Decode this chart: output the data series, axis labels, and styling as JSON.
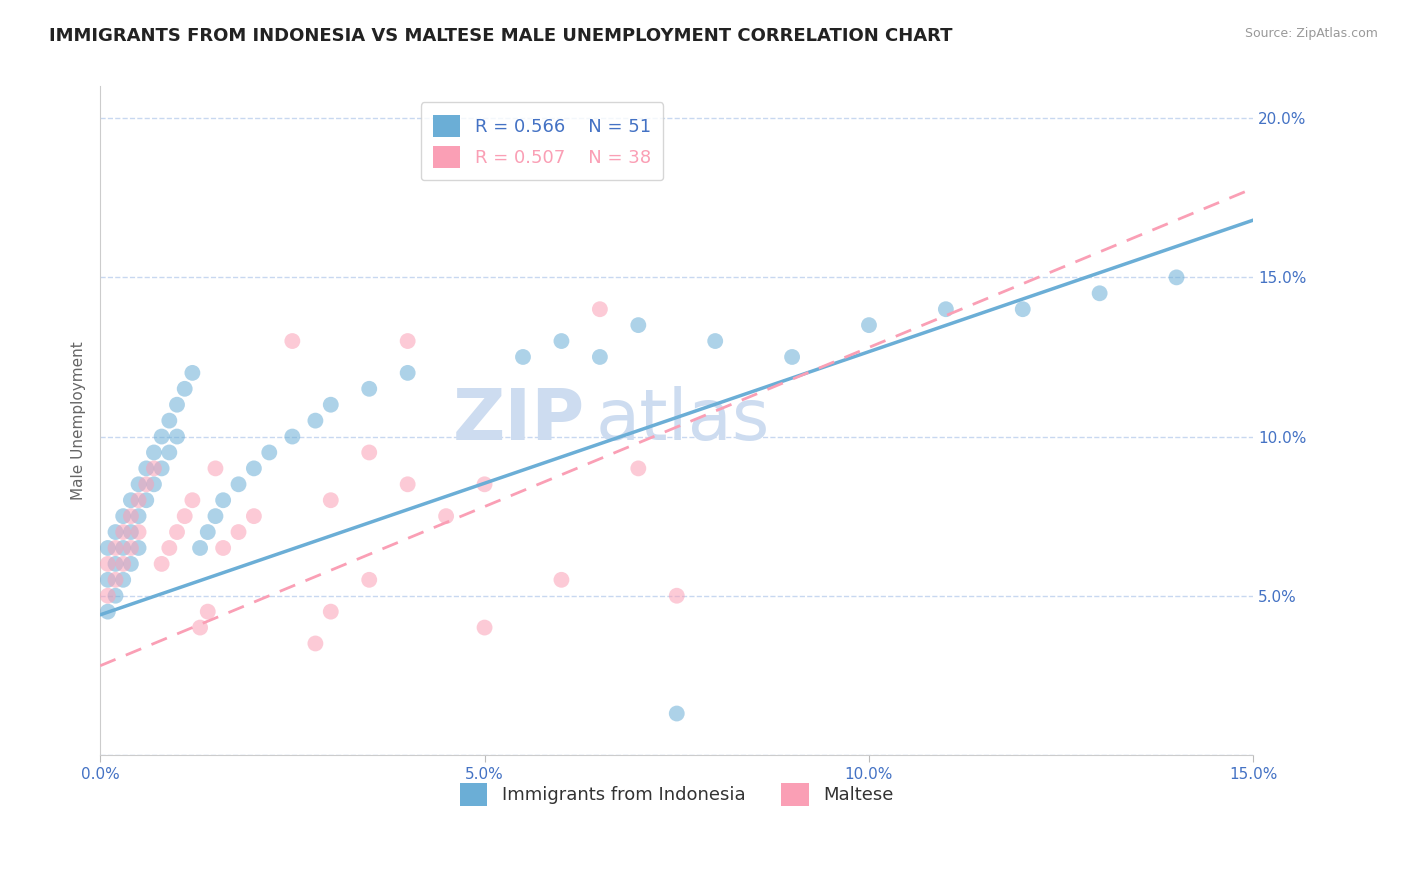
{
  "title": "IMMIGRANTS FROM INDONESIA VS MALTESE MALE UNEMPLOYMENT CORRELATION CHART",
  "source": "Source: ZipAtlas.com",
  "ylabel": "Male Unemployment",
  "series1_name": "Immigrants from Indonesia",
  "series1_color": "#6baed6",
  "series1_R": "0.566",
  "series1_N": "51",
  "series2_name": "Maltese",
  "series2_color": "#fa9fb5",
  "series2_R": "0.507",
  "series2_N": "38",
  "xlim": [
    0.0,
    0.15
  ],
  "ylim": [
    0.0,
    0.21
  ],
  "ytick_values": [
    0.0,
    0.05,
    0.1,
    0.15,
    0.2
  ],
  "ytick_labels": [
    "",
    "5.0%",
    "10.0%",
    "15.0%",
    "20.0%"
  ],
  "xtick_values": [
    0.0,
    0.05,
    0.1,
    0.15
  ],
  "xtick_labels": [
    "0.0%",
    "5.0%",
    "10.0%",
    "15.0%"
  ],
  "axis_color": "#4472c4",
  "grid_color": "#c8d8f0",
  "title_fontsize": 13,
  "label_fontsize": 11,
  "tick_fontsize": 11,
  "legend_fontsize": 13,
  "watermark_color": "#cddcf0",
  "watermark_fontsize": 52,
  "series1_x": [
    0.001,
    0.001,
    0.001,
    0.002,
    0.002,
    0.002,
    0.003,
    0.003,
    0.003,
    0.004,
    0.004,
    0.004,
    0.005,
    0.005,
    0.005,
    0.006,
    0.006,
    0.007,
    0.007,
    0.008,
    0.008,
    0.009,
    0.009,
    0.01,
    0.01,
    0.011,
    0.012,
    0.013,
    0.014,
    0.015,
    0.016,
    0.018,
    0.02,
    0.022,
    0.025,
    0.028,
    0.03,
    0.035,
    0.04,
    0.055,
    0.06,
    0.065,
    0.07,
    0.075,
    0.08,
    0.09,
    0.1,
    0.11,
    0.12,
    0.13,
    0.14
  ],
  "series1_y": [
    0.065,
    0.055,
    0.045,
    0.07,
    0.06,
    0.05,
    0.075,
    0.065,
    0.055,
    0.08,
    0.07,
    0.06,
    0.085,
    0.075,
    0.065,
    0.09,
    0.08,
    0.095,
    0.085,
    0.1,
    0.09,
    0.105,
    0.095,
    0.11,
    0.1,
    0.115,
    0.12,
    0.065,
    0.07,
    0.075,
    0.08,
    0.085,
    0.09,
    0.095,
    0.1,
    0.105,
    0.11,
    0.115,
    0.12,
    0.125,
    0.13,
    0.125,
    0.135,
    0.013,
    0.13,
    0.125,
    0.135,
    0.14,
    0.14,
    0.145,
    0.15
  ],
  "series2_x": [
    0.001,
    0.001,
    0.002,
    0.002,
    0.003,
    0.003,
    0.004,
    0.004,
    0.005,
    0.005,
    0.006,
    0.007,
    0.008,
    0.009,
    0.01,
    0.011,
    0.012,
    0.013,
    0.014,
    0.015,
    0.016,
    0.018,
    0.02,
    0.025,
    0.028,
    0.03,
    0.03,
    0.035,
    0.035,
    0.04,
    0.04,
    0.045,
    0.05,
    0.05,
    0.06,
    0.065,
    0.07,
    0.075
  ],
  "series2_y": [
    0.06,
    0.05,
    0.065,
    0.055,
    0.07,
    0.06,
    0.075,
    0.065,
    0.08,
    0.07,
    0.085,
    0.09,
    0.06,
    0.065,
    0.07,
    0.075,
    0.08,
    0.04,
    0.045,
    0.09,
    0.065,
    0.07,
    0.075,
    0.13,
    0.035,
    0.08,
    0.045,
    0.095,
    0.055,
    0.085,
    0.13,
    0.075,
    0.085,
    0.04,
    0.055,
    0.14,
    0.09,
    0.05
  ],
  "line1_x0": 0.0,
  "line1_y0": 0.044,
  "line1_x1": 0.15,
  "line1_y1": 0.168,
  "line2_x0": 0.0,
  "line2_y0": 0.028,
  "line2_x1": 0.15,
  "line2_y1": 0.178
}
